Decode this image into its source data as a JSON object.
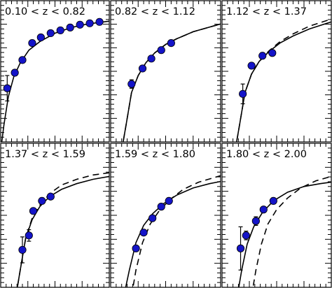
{
  "chart_data": {
    "type": "scatter",
    "panel_grid": {
      "rows": 2,
      "cols": 3
    },
    "axes": {
      "xlim": [
        0,
        1
      ],
      "ylim": [
        0,
        1
      ],
      "tick_labels_shown": false,
      "grid": false
    },
    "panels": [
      {
        "title": "0.10 < z < 0.82",
        "points": [
          [
            0.06,
            0.38,
            0.09
          ],
          [
            0.13,
            0.49,
            0.02
          ],
          [
            0.2,
            0.58,
            0.02
          ],
          [
            0.29,
            0.7,
            0.02
          ],
          [
            0.37,
            0.74,
            0.015
          ],
          [
            0.46,
            0.77,
            0.015
          ],
          [
            0.55,
            0.79,
            0.015
          ],
          [
            0.64,
            0.81,
            0.015
          ],
          [
            0.73,
            0.83,
            0.015
          ],
          [
            0.82,
            0.84,
            0.015
          ],
          [
            0.91,
            0.85,
            0.015
          ]
        ],
        "solid": [
          [
            0.0,
            -0.06
          ],
          [
            0.03,
            0.12
          ],
          [
            0.07,
            0.32
          ],
          [
            0.12,
            0.46
          ],
          [
            0.18,
            0.56
          ],
          [
            0.26,
            0.65
          ],
          [
            0.36,
            0.71
          ],
          [
            0.5,
            0.77
          ],
          [
            0.65,
            0.81
          ],
          [
            0.8,
            0.835
          ],
          [
            1.0,
            0.855
          ]
        ],
        "dashed": null
      },
      {
        "title": "0.82 < z < 1.12",
        "points": [
          [
            0.19,
            0.41,
            0.03
          ],
          [
            0.29,
            0.52,
            0.02
          ],
          [
            0.37,
            0.59,
            0.02
          ],
          [
            0.46,
            0.65,
            0.02
          ],
          [
            0.55,
            0.7,
            0.02
          ]
        ],
        "solid": [
          [
            0.1,
            -0.06
          ],
          [
            0.14,
            0.12
          ],
          [
            0.19,
            0.35
          ],
          [
            0.25,
            0.47
          ],
          [
            0.32,
            0.56
          ],
          [
            0.4,
            0.63
          ],
          [
            0.5,
            0.69
          ],
          [
            0.6,
            0.73
          ],
          [
            0.75,
            0.78
          ],
          [
            1.0,
            0.835
          ]
        ],
        "dashed": [
          [
            0.1,
            -0.06
          ],
          [
            0.14,
            0.12
          ],
          [
            0.19,
            0.35
          ],
          [
            0.25,
            0.47
          ],
          [
            0.32,
            0.56
          ],
          [
            0.4,
            0.63
          ],
          [
            0.5,
            0.69
          ],
          [
            0.6,
            0.73
          ],
          [
            0.75,
            0.78
          ],
          [
            1.0,
            0.835
          ]
        ]
      },
      {
        "title": "1.12 < z < 1.37",
        "points": [
          [
            0.19,
            0.34,
            0.07
          ],
          [
            0.27,
            0.54,
            0.02
          ],
          [
            0.37,
            0.61,
            0.02
          ],
          [
            0.46,
            0.63,
            0.02
          ]
        ],
        "solid": [
          [
            0.12,
            -0.06
          ],
          [
            0.16,
            0.12
          ],
          [
            0.21,
            0.35
          ],
          [
            0.27,
            0.48
          ],
          [
            0.34,
            0.57
          ],
          [
            0.43,
            0.64
          ],
          [
            0.53,
            0.7
          ],
          [
            0.65,
            0.75
          ],
          [
            0.8,
            0.8
          ],
          [
            1.0,
            0.85
          ]
        ],
        "dashed": [
          [
            0.12,
            -0.06
          ],
          [
            0.16,
            0.12
          ],
          [
            0.21,
            0.35
          ],
          [
            0.27,
            0.48
          ],
          [
            0.34,
            0.57
          ],
          [
            0.43,
            0.645
          ],
          [
            0.53,
            0.71
          ],
          [
            0.65,
            0.765
          ],
          [
            0.8,
            0.82
          ],
          [
            1.0,
            0.87
          ]
        ]
      },
      {
        "title": "1.37 < z < 1.59",
        "points": [
          [
            0.2,
            0.26,
            0.09
          ],
          [
            0.26,
            0.36,
            0.04
          ],
          [
            0.3,
            0.53,
            0.02
          ],
          [
            0.38,
            0.6,
            0.02
          ],
          [
            0.46,
            0.63,
            0.02
          ]
        ],
        "solid": [
          [
            0.14,
            -0.06
          ],
          [
            0.18,
            0.12
          ],
          [
            0.23,
            0.34
          ],
          [
            0.29,
            0.47
          ],
          [
            0.36,
            0.56
          ],
          [
            0.45,
            0.63
          ],
          [
            0.56,
            0.68
          ],
          [
            0.7,
            0.72
          ],
          [
            0.85,
            0.75
          ],
          [
            1.0,
            0.77
          ]
        ],
        "dashed": [
          [
            0.14,
            -0.06
          ],
          [
            0.18,
            0.12
          ],
          [
            0.23,
            0.34
          ],
          [
            0.29,
            0.48
          ],
          [
            0.36,
            0.57
          ],
          [
            0.45,
            0.65
          ],
          [
            0.56,
            0.71
          ],
          [
            0.7,
            0.75
          ],
          [
            0.85,
            0.78
          ],
          [
            1.0,
            0.795
          ]
        ]
      },
      {
        "title": "1.59 < z < 1.80",
        "points": [
          [
            0.23,
            0.27,
            0.02
          ],
          [
            0.3,
            0.38,
            0.02
          ],
          [
            0.38,
            0.48,
            0.02
          ],
          [
            0.46,
            0.56,
            0.02
          ],
          [
            0.53,
            0.6,
            0.02
          ]
        ],
        "solid": [
          [
            0.12,
            -0.06
          ],
          [
            0.17,
            0.12
          ],
          [
            0.23,
            0.31
          ],
          [
            0.3,
            0.43
          ],
          [
            0.38,
            0.51
          ],
          [
            0.48,
            0.58
          ],
          [
            0.6,
            0.64
          ],
          [
            0.75,
            0.69
          ],
          [
            0.9,
            0.72
          ],
          [
            1.0,
            0.735
          ]
        ],
        "dashed": [
          [
            0.19,
            -0.06
          ],
          [
            0.23,
            0.12
          ],
          [
            0.29,
            0.31
          ],
          [
            0.36,
            0.44
          ],
          [
            0.44,
            0.53
          ],
          [
            0.54,
            0.61
          ],
          [
            0.66,
            0.68
          ],
          [
            0.8,
            0.73
          ],
          [
            1.0,
            0.775
          ]
        ]
      },
      {
        "title": "1.80 < z < 2.00",
        "points": [
          [
            0.17,
            0.27,
            0.15
          ],
          [
            0.22,
            0.36,
            0.03
          ],
          [
            0.31,
            0.46,
            0.03
          ],
          [
            0.38,
            0.54,
            0.02
          ],
          [
            0.47,
            0.6,
            0.02
          ]
        ],
        "solid": [
          [
            0.14,
            -0.06
          ],
          [
            0.18,
            0.12
          ],
          [
            0.23,
            0.3
          ],
          [
            0.29,
            0.42
          ],
          [
            0.37,
            0.52
          ],
          [
            0.47,
            0.6
          ],
          [
            0.6,
            0.66
          ],
          [
            0.75,
            0.7
          ],
          [
            0.9,
            0.72
          ],
          [
            1.0,
            0.73
          ]
        ],
        "dashed": [
          [
            0.27,
            -0.06
          ],
          [
            0.31,
            0.12
          ],
          [
            0.36,
            0.3
          ],
          [
            0.42,
            0.44
          ],
          [
            0.5,
            0.54
          ],
          [
            0.6,
            0.62
          ],
          [
            0.72,
            0.69
          ],
          [
            0.86,
            0.74
          ],
          [
            1.0,
            0.77
          ]
        ]
      }
    ]
  }
}
